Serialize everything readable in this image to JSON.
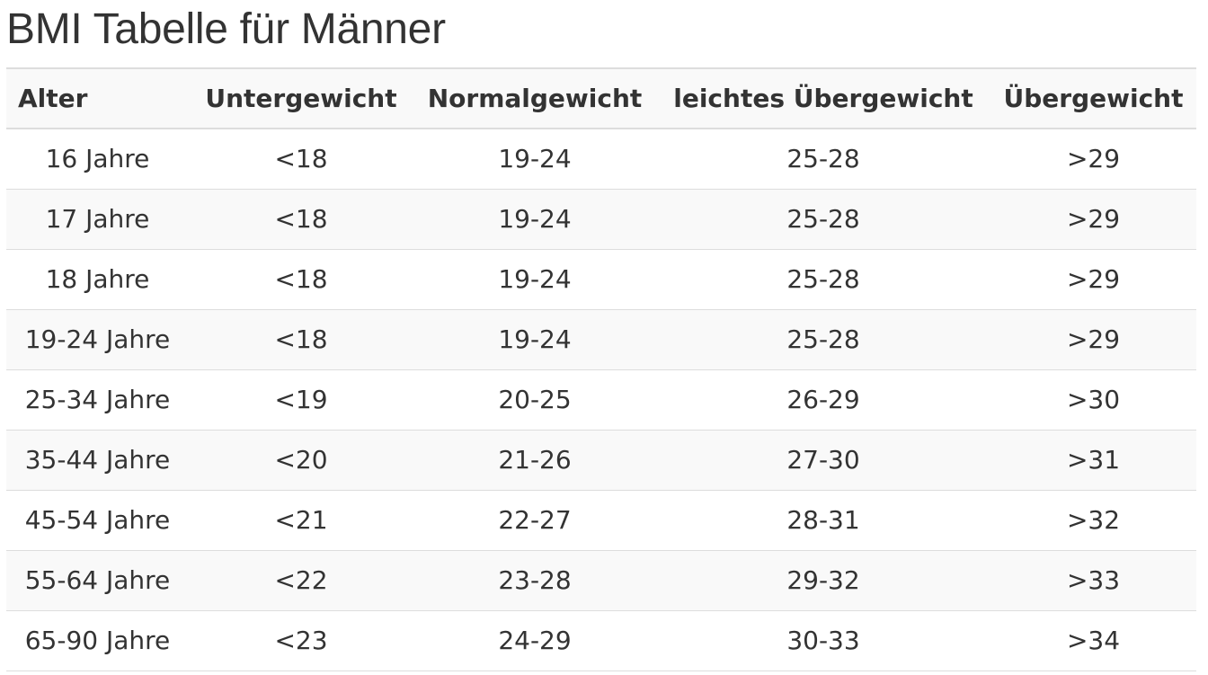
{
  "page": {
    "title": "BMI Tabelle für Männer"
  },
  "table": {
    "headers": [
      "Alter",
      "Untergewicht",
      "Normalgewicht",
      "leichtes Übergewicht",
      "Übergewicht"
    ],
    "rows": [
      [
        "16 Jahre",
        "<18",
        "19-24",
        "25-28",
        ">29"
      ],
      [
        "17 Jahre",
        "<18",
        "19-24",
        "25-28",
        ">29"
      ],
      [
        "18 Jahre",
        "<18",
        "19-24",
        "25-28",
        ">29"
      ],
      [
        "19-24 Jahre",
        "<18",
        "19-24",
        "25-28",
        ">29"
      ],
      [
        "25-34 Jahre",
        "<19",
        "20-25",
        "26-29",
        ">30"
      ],
      [
        "35-44 Jahre",
        "<20",
        "21-26",
        "27-30",
        ">31"
      ],
      [
        "45-54 Jahre",
        "<21",
        "22-27",
        "28-31",
        ">32"
      ],
      [
        "55-64 Jahre",
        "<22",
        "23-28",
        "29-32",
        ">33"
      ],
      [
        "65-90 Jahre",
        "<23",
        "24-29",
        "30-33",
        ">34"
      ]
    ]
  },
  "colors": {
    "text": "#333333",
    "stripe": "#f9f9f9",
    "border": "#dddddd",
    "background": "#ffffff"
  }
}
